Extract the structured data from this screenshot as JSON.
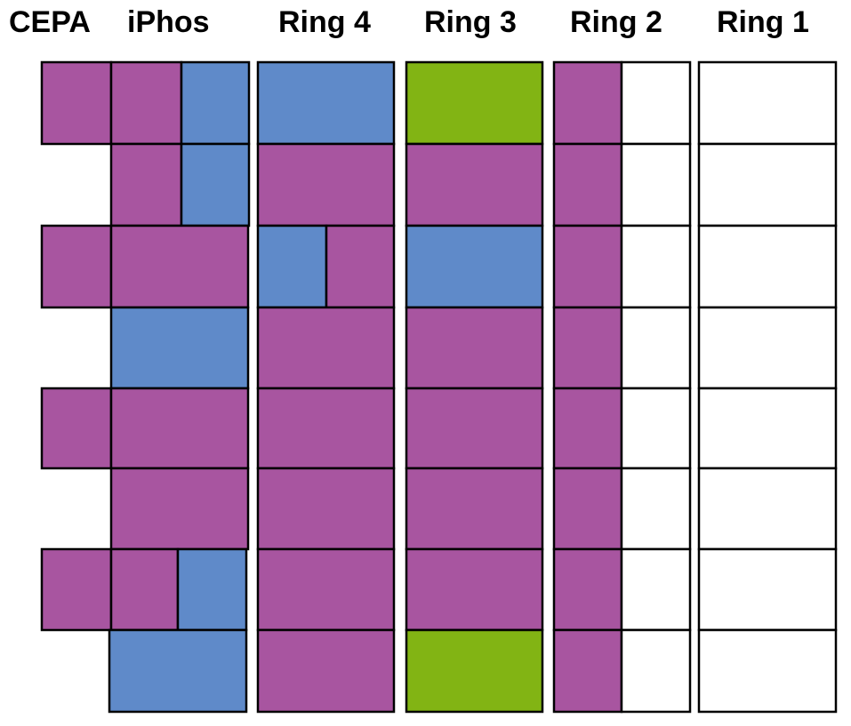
{
  "headers": {
    "cepa": "CEPA",
    "iphos": "iPhos",
    "ring4": "Ring 4",
    "ring3": "Ring 3",
    "ring2": "Ring 2",
    "ring1": "Ring 1"
  },
  "colors": {
    "purple": "#a855a0",
    "blue": "#5f8ac9",
    "green": "#82b414",
    "white": "#ffffff",
    "stroke": "#000000"
  },
  "columns": {
    "cepa": {
      "rows": [
        "purple",
        null,
        "purple",
        null,
        "purple",
        null,
        "purple",
        null
      ]
    },
    "iphos": {
      "rows": [
        [
          "purple",
          "blue"
        ],
        [
          "purple",
          "blue"
        ],
        [
          "purple"
        ],
        [
          "blue"
        ],
        [
          "purple"
        ],
        [
          "purple"
        ],
        [
          "purple",
          "blue"
        ],
        [
          "blue"
        ]
      ]
    },
    "ring4": {
      "rows": [
        [
          "blue"
        ],
        [
          "purple"
        ],
        [
          "blue",
          "purple"
        ],
        [
          "purple"
        ],
        [
          "purple"
        ],
        [
          "purple"
        ],
        [
          "purple"
        ],
        [
          "purple"
        ]
      ]
    },
    "ring3": {
      "rows": [
        [
          "green"
        ],
        [
          "purple"
        ],
        [
          "blue"
        ],
        [
          "purple"
        ],
        [
          "purple"
        ],
        [
          "purple"
        ],
        [
          "purple"
        ],
        [
          "green"
        ]
      ]
    },
    "ring2": {
      "rows": [
        [
          "purple",
          "white"
        ],
        [
          "purple",
          "white"
        ],
        [
          "purple",
          "white"
        ],
        [
          "purple",
          "white"
        ],
        [
          "purple",
          "white"
        ],
        [
          "purple",
          "white"
        ],
        [
          "purple",
          "white"
        ],
        [
          "purple",
          "white"
        ]
      ]
    },
    "ring1": {
      "rows": [
        [
          "white"
        ],
        [
          "white"
        ],
        [
          "white"
        ],
        [
          "white"
        ],
        [
          "white"
        ],
        [
          "white"
        ],
        [
          "white"
        ],
        [
          "white"
        ]
      ]
    }
  }
}
